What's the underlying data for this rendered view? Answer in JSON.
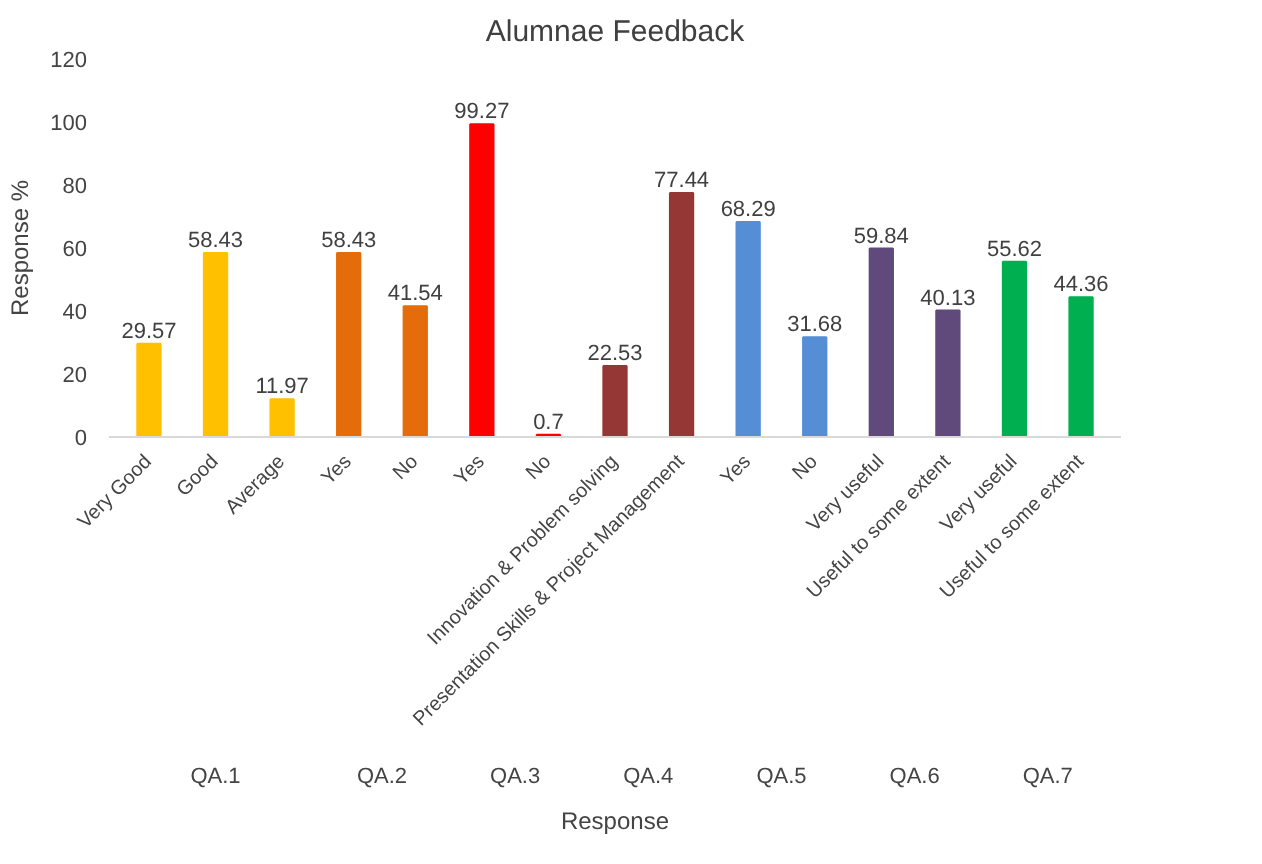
{
  "chart_data": {
    "type": "bar",
    "title": "Alumnae Feedback",
    "xlabel": "Response",
    "ylabel": "Response %",
    "categories": [
      "Very Good",
      "Good",
      "Average",
      "Yes",
      "No",
      "Yes",
      "No",
      "Innovation & Problem solving",
      "Presentation Skills & Project Management",
      "Yes",
      "No",
      "Very useful",
      "Useful to some extent",
      "Very useful",
      "Useful to some extent"
    ],
    "values": [
      29.57,
      58.43,
      11.97,
      58.43,
      41.54,
      99.27,
      0.7,
      22.53,
      77.44,
      68.29,
      31.68,
      59.84,
      40.13,
      55.62,
      44.36
    ],
    "colors": [
      "#ffc000",
      "#ffc000",
      "#ffc000",
      "#e46c0a",
      "#e46c0a",
      "#ff0000",
      "#ff0000",
      "#953735",
      "#953735",
      "#558ed5",
      "#558ed5",
      "#604a7b",
      "#604a7b",
      "#00b050",
      "#00b050"
    ],
    "annotations": [
      "QA.1",
      "QA.2",
      "QA.3",
      "QA.4",
      "QA.5",
      "QA.6",
      "QA.7"
    ],
    "ylim": [
      0,
      120
    ],
    "yticks": [
      0,
      20,
      40,
      60,
      80,
      100,
      120
    ],
    "data_labels": true,
    "grid": false
  }
}
